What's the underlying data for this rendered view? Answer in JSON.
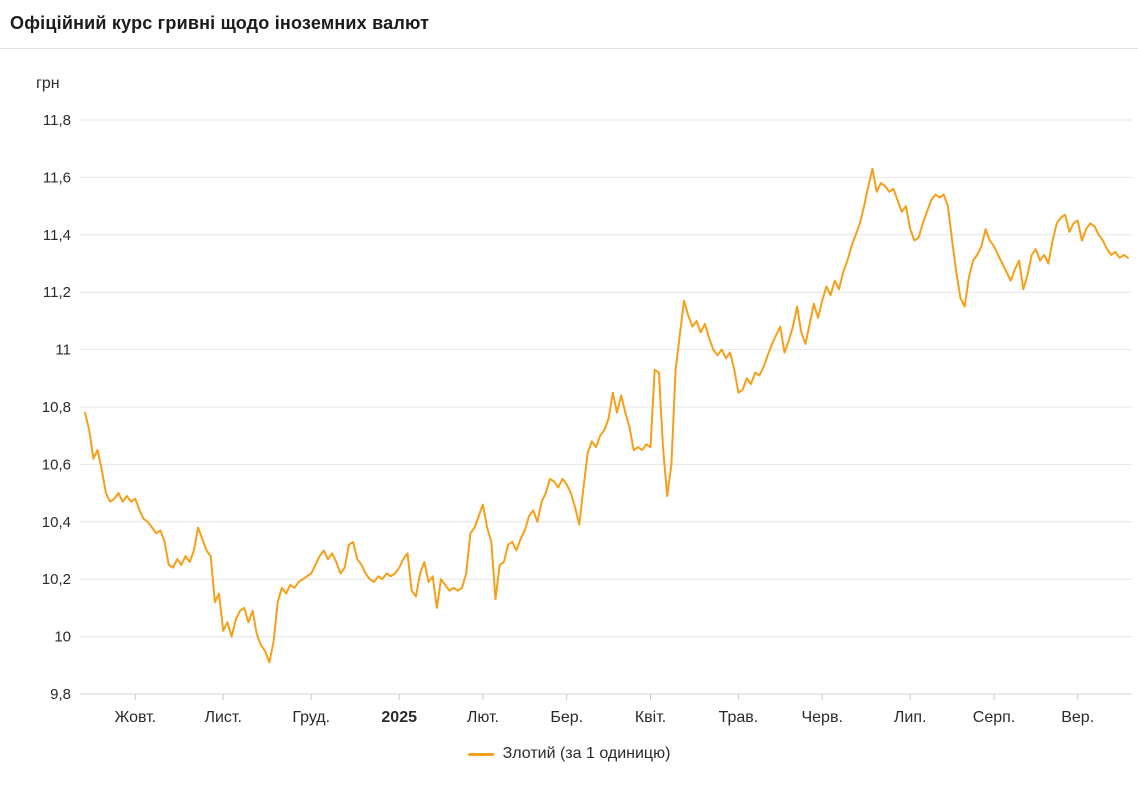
{
  "header": {
    "title": "Офіційний курс гривні щодо іноземних валют"
  },
  "chart_data": {
    "type": "line",
    "title": "Офіційний курс гривні щодо іноземних валют",
    "ylabel": "грн",
    "ylim": [
      9.8,
      11.8
    ],
    "ytick_values": [
      9.8,
      10.0,
      10.2,
      10.4,
      10.6,
      10.8,
      11.0,
      11.2,
      11.4,
      11.6,
      11.8
    ],
    "ytick_labels": [
      "9,8",
      "10",
      "10,2",
      "10,4",
      "10,6",
      "10,8",
      "11",
      "11,2",
      "11,4",
      "11,6",
      "11,8"
    ],
    "grid": "horizontal",
    "legend_position": "bottom",
    "line_color": "#F6A01A",
    "xticks": [
      {
        "label": "Жовт.",
        "index": 12,
        "bold": false
      },
      {
        "label": "Лист.",
        "index": 33,
        "bold": false
      },
      {
        "label": "Груд.",
        "index": 54,
        "bold": false
      },
      {
        "label": "2025",
        "index": 75,
        "bold": true
      },
      {
        "label": "Лют.",
        "index": 95,
        "bold": false
      },
      {
        "label": "Бер.",
        "index": 115,
        "bold": false
      },
      {
        "label": "Квіт.",
        "index": 135,
        "bold": false
      },
      {
        "label": "Трав.",
        "index": 156,
        "bold": false
      },
      {
        "label": "Черв.",
        "index": 176,
        "bold": false
      },
      {
        "label": "Лип.",
        "index": 197,
        "bold": false
      },
      {
        "label": "Серп.",
        "index": 217,
        "bold": false
      },
      {
        "label": "Вер.",
        "index": 237,
        "bold": false
      }
    ],
    "series": [
      {
        "name": "Злотий (за 1 одиницю)",
        "values": [
          10.78,
          10.72,
          10.62,
          10.65,
          10.58,
          10.5,
          10.47,
          10.48,
          10.5,
          10.47,
          10.49,
          10.47,
          10.48,
          10.44,
          10.41,
          10.4,
          10.38,
          10.36,
          10.37,
          10.33,
          10.25,
          10.24,
          10.27,
          10.25,
          10.28,
          10.26,
          10.3,
          10.38,
          10.34,
          10.3,
          10.28,
          10.12,
          10.15,
          10.02,
          10.05,
          10.0,
          10.06,
          10.09,
          10.1,
          10.05,
          10.09,
          10.01,
          9.97,
          9.95,
          9.91,
          9.98,
          10.12,
          10.17,
          10.15,
          10.18,
          10.17,
          10.19,
          10.2,
          10.21,
          10.22,
          10.25,
          10.28,
          10.3,
          10.27,
          10.29,
          10.26,
          10.22,
          10.24,
          10.32,
          10.33,
          10.27,
          10.25,
          10.22,
          10.2,
          10.19,
          10.21,
          10.2,
          10.22,
          10.21,
          10.22,
          10.24,
          10.27,
          10.29,
          10.16,
          10.14,
          10.22,
          10.26,
          10.19,
          10.21,
          10.1,
          10.2,
          10.18,
          10.16,
          10.17,
          10.16,
          10.17,
          10.22,
          10.36,
          10.38,
          10.42,
          10.46,
          10.38,
          10.33,
          10.13,
          10.25,
          10.26,
          10.32,
          10.33,
          10.3,
          10.34,
          10.37,
          10.42,
          10.44,
          10.4,
          10.47,
          10.5,
          10.55,
          10.54,
          10.52,
          10.55,
          10.53,
          10.5,
          10.45,
          10.39,
          10.52,
          10.64,
          10.68,
          10.66,
          10.7,
          10.72,
          10.76,
          10.85,
          10.78,
          10.84,
          10.78,
          10.73,
          10.65,
          10.66,
          10.65,
          10.67,
          10.66,
          10.93,
          10.92,
          10.66,
          10.49,
          10.6,
          10.93,
          11.05,
          11.17,
          11.12,
          11.08,
          11.1,
          11.06,
          11.09,
          11.04,
          11.0,
          10.98,
          11.0,
          10.97,
          10.99,
          10.93,
          10.85,
          10.86,
          10.9,
          10.88,
          10.92,
          10.91,
          10.94,
          10.98,
          11.02,
          11.05,
          11.08,
          10.99,
          11.03,
          11.08,
          11.15,
          11.06,
          11.02,
          11.09,
          11.16,
          11.11,
          11.17,
          11.22,
          11.19,
          11.24,
          11.21,
          11.27,
          11.31,
          11.36,
          11.4,
          11.44,
          11.5,
          11.57,
          11.63,
          11.55,
          11.58,
          11.57,
          11.55,
          11.56,
          11.52,
          11.48,
          11.5,
          11.42,
          11.38,
          11.39,
          11.44,
          11.48,
          11.52,
          11.54,
          11.53,
          11.54,
          11.5,
          11.38,
          11.27,
          11.18,
          11.15,
          11.25,
          11.31,
          11.33,
          11.36,
          11.42,
          11.38,
          11.36,
          11.33,
          11.3,
          11.27,
          11.24,
          11.28,
          11.31,
          11.21,
          11.26,
          11.33,
          11.35,
          11.31,
          11.33,
          11.3,
          11.38,
          11.44,
          11.46,
          11.47,
          11.41,
          11.44,
          11.45,
          11.38,
          11.42,
          11.44,
          11.43,
          11.4,
          11.38,
          11.35,
          11.33,
          11.34,
          11.32,
          11.33,
          11.32
        ]
      }
    ]
  }
}
